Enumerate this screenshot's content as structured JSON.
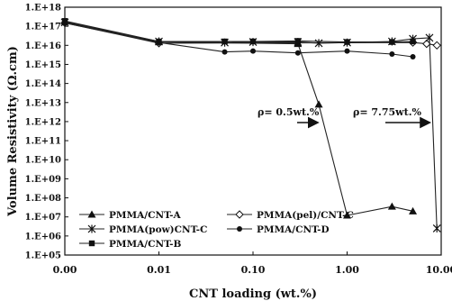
{
  "chart_data": {
    "type": "line",
    "title": "",
    "xlabel": "CNT loading (wt.%)",
    "ylabel": "Volume Resistivity (Ω.cm)",
    "x_scale": "log",
    "y_scale": "log",
    "xlim": [
      0.001,
      10
    ],
    "ylim": [
      100000,
      1e+18
    ],
    "x_ticks": [
      {
        "value": 0.001,
        "label": "0.00"
      },
      {
        "value": 0.01,
        "label": "0.01"
      },
      {
        "value": 0.1,
        "label": "0.10"
      },
      {
        "value": 1,
        "label": "1.00"
      },
      {
        "value": 10,
        "label": "10.00"
      }
    ],
    "y_ticks": [
      {
        "value": 1e+18,
        "label": "1.E+18"
      },
      {
        "value": 1e+17,
        "label": "1.E+17"
      },
      {
        "value": 1e+16,
        "label": "1.E+16"
      },
      {
        "value": 1000000000000000.0,
        "label": "1.E+15"
      },
      {
        "value": 100000000000000.0,
        "label": "1.E+14"
      },
      {
        "value": 10000000000000.0,
        "label": "1.E+13"
      },
      {
        "value": 1000000000000.0,
        "label": "1.E+12"
      },
      {
        "value": 100000000000.0,
        "label": "1.E+11"
      },
      {
        "value": 10000000000.0,
        "label": "1.E+10"
      },
      {
        "value": 1000000000.0,
        "label": "1.E+09"
      },
      {
        "value": 100000000.0,
        "label": "1.E+08"
      },
      {
        "value": 10000000.0,
        "label": "1.E+07"
      },
      {
        "value": 1000000.0,
        "label": "1.E+06"
      },
      {
        "value": 100000,
        "label": "1.E+05"
      }
    ],
    "grid": false,
    "series": [
      {
        "name": "PMMA/CNT-A",
        "marker": "triangle",
        "x": [
          0.001,
          0.01,
          0.3,
          0.5,
          1,
          3,
          5
        ],
        "y": [
          1.8e+17,
          1.5e+16,
          1.2e+16,
          8000000000000.0,
          12000000.0,
          35000000.0,
          20000000.0
        ]
      },
      {
        "name": "PMMA(pel)/CNT-C",
        "marker": "diamond-open",
        "x": [
          0.001,
          0.01,
          5,
          7,
          9
        ],
        "y": [
          1.5e+17,
          1.3e+16,
          1.4e+16,
          1.2e+16,
          1e+16
        ]
      },
      {
        "name": "PMMA(pow)CNT-C",
        "marker": "star",
        "x": [
          0.001,
          0.01,
          0.05,
          0.1,
          0.3,
          0.5,
          1,
          3,
          5,
          7.5,
          9
        ],
        "y": [
          1.6e+17,
          1.6e+16,
          1.4e+16,
          1.5e+16,
          1.5e+16,
          1.3e+16,
          1.4e+16,
          1.6e+16,
          2.2e+16,
          2.5e+16,
          2500000.0
        ]
      },
      {
        "name": "PMMA/CNT-D",
        "marker": "circle",
        "x": [
          0.001,
          0.01,
          0.05,
          0.1,
          0.3,
          1,
          3,
          5
        ],
        "y": [
          1.5e+17,
          1.4e+16,
          4500000000000000.0,
          5000000000000000.0,
          4000000000000000.0,
          5000000000000000.0,
          3500000000000000.0,
          2500000000000000.0
        ]
      },
      {
        "name": "PMMA/CNT-B",
        "marker": "square",
        "x": [
          0.001,
          0.01,
          0.05,
          0.1,
          0.3,
          1,
          3,
          5
        ],
        "y": [
          1.9e+17,
          1.6e+16,
          1.6e+16,
          1.6e+16,
          1.7e+16,
          1.5e+16,
          1.5e+16,
          1.6e+16
        ]
      }
    ],
    "legend": {
      "placement": "bottom-left",
      "entries": [
        "PMMA/CNT-A",
        "PMMA(pel)/CNT-C",
        "PMMA(pow)CNT-C",
        "PMMA/CNT-D",
        "PMMA/CNT-B"
      ]
    },
    "annotations": [
      {
        "text": "ρ= 0.5wt.%",
        "points_to": {
          "x": 0.5,
          "y": 8000000000000.0
        }
      },
      {
        "text": "ρ= 7.75wt.%",
        "points_to": {
          "x": 7.75,
          "y": 20000000000000.0
        }
      }
    ]
  }
}
